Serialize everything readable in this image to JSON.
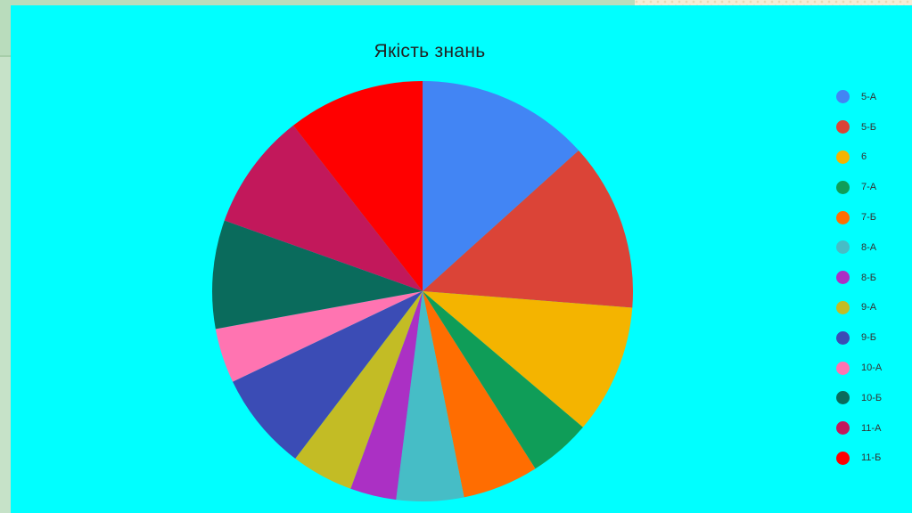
{
  "chart_data": {
    "type": "pie",
    "title": "Якість знань",
    "legend_position": "right",
    "slices": [
      {
        "label": "5-А",
        "value": 13.9,
        "color": "#4285f4"
      },
      {
        "label": "5-Б",
        "value": 13.5,
        "color": "#db4437"
      },
      {
        "label": "6",
        "value": 10.4,
        "color": "#f4b400"
      },
      {
        "label": "7-А",
        "value": 5.0,
        "color": "#0f9d58"
      },
      {
        "label": "7-Б",
        "value": 6.1,
        "color": "#ff6d01"
      },
      {
        "label": "8-А",
        "value": 5.4,
        "color": "#46bdc6"
      },
      {
        "label": "8-Б",
        "value": 3.7,
        "color": "#ab30c4"
      },
      {
        "label": "9-А",
        "value": 5.0,
        "color": "#c3bc25"
      },
      {
        "label": "9-Б",
        "value": 7.9,
        "color": "#3b4cb5"
      },
      {
        "label": "10-А",
        "value": 4.4,
        "color": "#ff74b1"
      },
      {
        "label": "10-Б",
        "value": 8.7,
        "color": "#0a6b5c"
      },
      {
        "label": "11-А",
        "value": 9.4,
        "color": "#c2185b"
      },
      {
        "label": "11-Б",
        "value": 11.0,
        "color": "#ff0000"
      }
    ]
  }
}
